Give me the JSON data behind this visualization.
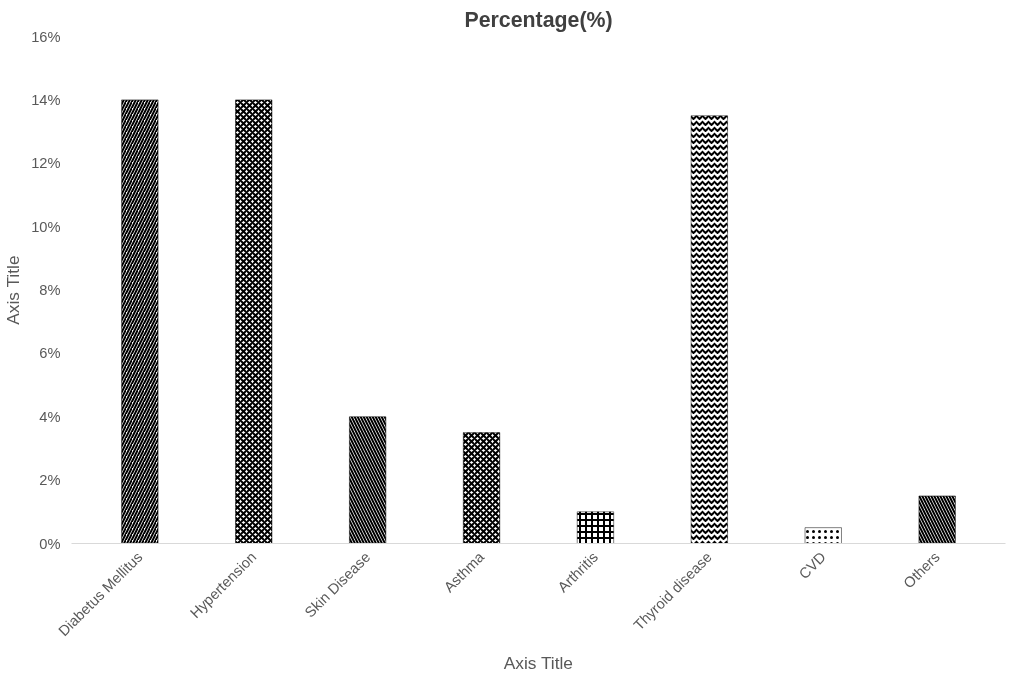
{
  "chart_data": {
    "type": "bar",
    "title": "Percentage(%)",
    "xlabel": "Axis Title",
    "ylabel": "Axis Title",
    "categories": [
      "Diabetus Mellitus",
      "Hypertension",
      "Skin Disease",
      "Asthma",
      "Arthritis",
      "Thyroid disease",
      "CVD",
      "Others"
    ],
    "values": [
      14,
      14,
      4,
      3.5,
      1,
      13.5,
      0.5,
      1.5
    ],
    "color": "#000000",
    "ylim": [
      0,
      16
    ],
    "yticks": [
      {
        "value": 0,
        "label": "0%"
      },
      {
        "value": 2,
        "label": "2%"
      },
      {
        "value": 4,
        "label": "4%"
      },
      {
        "value": 6,
        "label": "6%"
      },
      {
        "value": 8,
        "label": "8%"
      },
      {
        "value": 10,
        "label": "10%"
      },
      {
        "value": 12,
        "label": "12%"
      },
      {
        "value": 14,
        "label": "14%"
      },
      {
        "value": 16,
        "label": "16%"
      }
    ],
    "grid": false
  }
}
